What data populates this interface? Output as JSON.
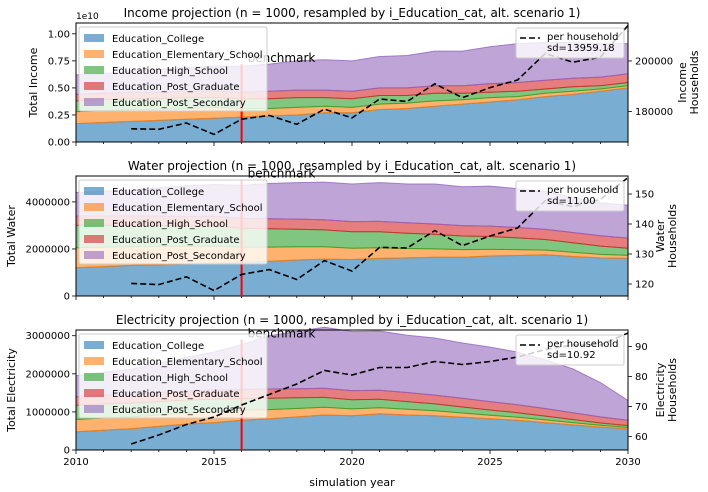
{
  "figure": {
    "xlabel": "simulation year",
    "x_ticks": [
      2010,
      2015,
      2020,
      2025,
      2030
    ],
    "xlim": [
      2010,
      2030
    ]
  },
  "chart_data": [
    {
      "type": "area",
      "title": "Income projection (n = 1000, resampled by i_Education_cat, alt. scenario 1)",
      "ylabel": "Total Income",
      "y_offset_label": "1e10",
      "y_ticks": [
        0.0,
        0.25,
        0.5,
        0.75,
        1.0
      ],
      "y_tick_labels": [
        "0.00",
        "0.25",
        "0.50",
        "0.75",
        "1.00"
      ],
      "ylim": [
        0,
        1.1
      ],
      "y_scale_note": "left axis values in units of 1e10",
      "x": [
        2010,
        2011,
        2012,
        2013,
        2014,
        2015,
        2016,
        2017,
        2018,
        2019,
        2020,
        2021,
        2022,
        2023,
        2024,
        2025,
        2026,
        2027,
        2028,
        2029,
        2030
      ],
      "series": [
        {
          "name": "Education_College",
          "color": "#1f77b4",
          "values": [
            0.17,
            0.18,
            0.19,
            0.2,
            0.21,
            0.22,
            0.23,
            0.24,
            0.25,
            0.27,
            0.27,
            0.3,
            0.31,
            0.33,
            0.35,
            0.37,
            0.39,
            0.42,
            0.44,
            0.47,
            0.5
          ]
        },
        {
          "name": "Education_Elementary_School",
          "color": "#ff7f0e",
          "values": [
            0.11,
            0.11,
            0.11,
            0.1,
            0.1,
            0.1,
            0.08,
            0.07,
            0.07,
            0.06,
            0.05,
            0.05,
            0.05,
            0.05,
            0.04,
            0.04,
            0.03,
            0.03,
            0.03,
            0.02,
            0.02
          ]
        },
        {
          "name": "Education_High_School",
          "color": "#2ca02c",
          "values": [
            0.1,
            0.1,
            0.1,
            0.1,
            0.1,
            0.09,
            0.09,
            0.09,
            0.09,
            0.08,
            0.08,
            0.08,
            0.07,
            0.07,
            0.06,
            0.05,
            0.05,
            0.04,
            0.04,
            0.03,
            0.03
          ]
        },
        {
          "name": "Education_Post_Graduate",
          "color": "#d62728",
          "values": [
            0.06,
            0.06,
            0.06,
            0.06,
            0.06,
            0.06,
            0.06,
            0.07,
            0.07,
            0.07,
            0.07,
            0.07,
            0.07,
            0.07,
            0.07,
            0.08,
            0.08,
            0.08,
            0.08,
            0.08,
            0.08
          ]
        },
        {
          "name": "Education_Post_Secondary",
          "color": "#9467bd",
          "values": [
            0.18,
            0.18,
            0.2,
            0.21,
            0.22,
            0.23,
            0.24,
            0.25,
            0.27,
            0.28,
            0.28,
            0.29,
            0.3,
            0.32,
            0.32,
            0.34,
            0.36,
            0.35,
            0.33,
            0.31,
            0.28
          ]
        }
      ],
      "secondary": {
        "ylabel": "Income\nHouseholds",
        "ylim": [
          168000,
          215000
        ],
        "y_ticks": [
          180000,
          200000
        ],
        "y_tick_labels": [
          "180000",
          "200000"
        ],
        "legend": "per household\nsd=13959.18",
        "x": [
          2012,
          2013,
          2014,
          2015,
          2016,
          2017,
          2018,
          2019,
          2020,
          2021,
          2022,
          2023,
          2024,
          2025,
          2026,
          2027,
          2028,
          2029,
          2030
        ],
        "values": [
          173200,
          173000,
          175500,
          171000,
          177000,
          178500,
          175000,
          181000,
          177500,
          185000,
          184000,
          191000,
          185500,
          189500,
          192500,
          203000,
          199500,
          201500,
          214000
        ]
      },
      "benchmark": {
        "label": "benchmark",
        "x": 2016,
        "color": "#ff0000",
        "line_top_value": 0.72
      }
    },
    {
      "type": "area",
      "title": "Water projection (n = 1000, resampled by i_Education_cat, alt. scenario 1)",
      "ylabel": "Total Water",
      "y_ticks": [
        0,
        2000000,
        4000000
      ],
      "y_tick_labels": [
        "0",
        "2000000",
        "4000000"
      ],
      "ylim": [
        0,
        5100000
      ],
      "x": [
        2010,
        2011,
        2012,
        2013,
        2014,
        2015,
        2016,
        2017,
        2018,
        2019,
        2020,
        2021,
        2022,
        2023,
        2024,
        2025,
        2026,
        2027,
        2028,
        2029,
        2030
      ],
      "series": [
        {
          "name": "Education_College",
          "color": "#1f77b4",
          "values": [
            1200000,
            1250000,
            1300000,
            1330000,
            1360000,
            1400000,
            1430000,
            1480000,
            1530000,
            1570000,
            1550000,
            1600000,
            1620000,
            1650000,
            1650000,
            1700000,
            1720000,
            1750000,
            1680000,
            1620000,
            1600000
          ]
        },
        {
          "name": "Education_Elementary_School",
          "color": "#ff7f0e",
          "values": [
            850000,
            830000,
            800000,
            780000,
            750000,
            720000,
            650000,
            600000,
            560000,
            520000,
            480000,
            450000,
            400000,
            350000,
            320000,
            280000,
            250000,
            200000,
            180000,
            150000,
            130000
          ]
        },
        {
          "name": "Education_High_School",
          "color": "#2ca02c",
          "values": [
            950000,
            920000,
            900000,
            880000,
            860000,
            850000,
            800000,
            780000,
            750000,
            720000,
            700000,
            680000,
            650000,
            620000,
            580000,
            550000,
            500000,
            450000,
            400000,
            350000,
            300000
          ]
        },
        {
          "name": "Education_Post_Graduate",
          "color": "#d62728",
          "values": [
            400000,
            400000,
            400000,
            410000,
            410000,
            420000,
            420000,
            420000,
            430000,
            430000,
            430000,
            440000,
            440000,
            440000,
            440000,
            440000,
            440000,
            440000,
            440000,
            440000,
            430000
          ]
        },
        {
          "name": "Education_Post_Secondary",
          "color": "#9467bd",
          "values": [
            1000000,
            1050000,
            1100000,
            1200000,
            1300000,
            1350000,
            1400000,
            1500000,
            1550000,
            1600000,
            1600000,
            1650000,
            1650000,
            1700000,
            1650000,
            1700000,
            1650000,
            1600000,
            1500000,
            1400000,
            1400000
          ]
        }
      ],
      "secondary": {
        "ylabel": "Water\nHouseholds",
        "ylim": [
          116,
          156
        ],
        "y_ticks": [
          120,
          130,
          140,
          150
        ],
        "y_tick_labels": [
          "120",
          "130",
          "140",
          "150"
        ],
        "legend": "per household\nsd=11.00",
        "x": [
          2012,
          2013,
          2014,
          2015,
          2016,
          2017,
          2018,
          2019,
          2020,
          2021,
          2022,
          2023,
          2024,
          2025,
          2026,
          2027,
          2028,
          2029,
          2030
        ],
        "values": [
          120.2,
          119.8,
          122.4,
          117.8,
          123.2,
          124.8,
          121.5,
          127.8,
          124.3,
          132.2,
          132.0,
          137.8,
          132.8,
          136.0,
          138.7,
          147.8,
          145.8,
          148.2,
          155.5
        ]
      },
      "benchmark": {
        "label": "benchmark",
        "x": 2016,
        "color": "#ff0000",
        "line_top_value": 4950000
      }
    },
    {
      "type": "area",
      "title": "Electricity projection (n = 1000, resampled by i_Education_cat, alt. scenario 1)",
      "ylabel": "Total Electricity",
      "y_ticks": [
        0,
        1000000,
        2000000,
        3000000
      ],
      "y_tick_labels": [
        "0",
        "1000000",
        "2000000",
        "3000000"
      ],
      "ylim": [
        0,
        3150000
      ],
      "x": [
        2010,
        2011,
        2012,
        2013,
        2014,
        2015,
        2016,
        2017,
        2018,
        2019,
        2020,
        2021,
        2022,
        2023,
        2024,
        2025,
        2026,
        2027,
        2028,
        2029,
        2030
      ],
      "series": [
        {
          "name": "Education_College",
          "color": "#1f77b4",
          "values": [
            480000,
            520000,
            560000,
            620000,
            680000,
            720000,
            780000,
            820000,
            870000,
            920000,
            900000,
            950000,
            920000,
            900000,
            860000,
            820000,
            780000,
            720000,
            660000,
            600000,
            550000
          ]
        },
        {
          "name": "Education_Elementary_School",
          "color": "#ff7f0e",
          "values": [
            320000,
            320000,
            310000,
            300000,
            290000,
            280000,
            260000,
            240000,
            220000,
            200000,
            180000,
            160000,
            150000,
            130000,
            110000,
            90000,
            80000,
            70000,
            60000,
            50000,
            40000
          ]
        },
        {
          "name": "Education_High_School",
          "color": "#2ca02c",
          "values": [
            370000,
            370000,
            360000,
            350000,
            340000,
            330000,
            310000,
            300000,
            280000,
            260000,
            240000,
            220000,
            200000,
            180000,
            160000,
            140000,
            120000,
            100000,
            80000,
            60000,
            50000
          ]
        },
        {
          "name": "Education_Post_Graduate",
          "color": "#d62728",
          "values": [
            230000,
            230000,
            230000,
            240000,
            240000,
            240000,
            240000,
            240000,
            240000,
            240000,
            240000,
            240000,
            240000,
            230000,
            230000,
            220000,
            210000,
            200000,
            180000,
            160000,
            140000
          ]
        },
        {
          "name": "Education_Post_Secondary",
          "color": "#9467bd",
          "values": [
            550000,
            600000,
            660000,
            760000,
            880000,
            1000000,
            1180000,
            1400000,
            1500000,
            1600000,
            1550000,
            1550000,
            1500000,
            1500000,
            1450000,
            1430000,
            1380000,
            1280000,
            1150000,
            900000,
            520000
          ]
        }
      ],
      "secondary": {
        "ylabel": "Electricity\nHouseholds",
        "ylim": [
          55.5,
          95.5
        ],
        "y_ticks": [
          60,
          70,
          80,
          90
        ],
        "y_tick_labels": [
          "60",
          "70",
          "80",
          "90"
        ],
        "legend": "per household\nsd=10.92",
        "x": [
          2012,
          2013,
          2014,
          2015,
          2016,
          2017,
          2018,
          2019,
          2020,
          2021,
          2022,
          2023,
          2024,
          2025,
          2026,
          2027,
          2028,
          2029,
          2030
        ],
        "values": [
          57.5,
          60.5,
          64.0,
          66.5,
          70.5,
          74.0,
          77.5,
          82.0,
          80.5,
          83.0,
          83.0,
          85.0,
          84.0,
          85.0,
          86.5,
          89.0,
          90.5,
          90.5,
          94.5
        ]
      },
      "benchmark": {
        "label": "benchmark",
        "x": 2016,
        "color": "#ff0000",
        "line_top_value": 2900000
      }
    }
  ]
}
